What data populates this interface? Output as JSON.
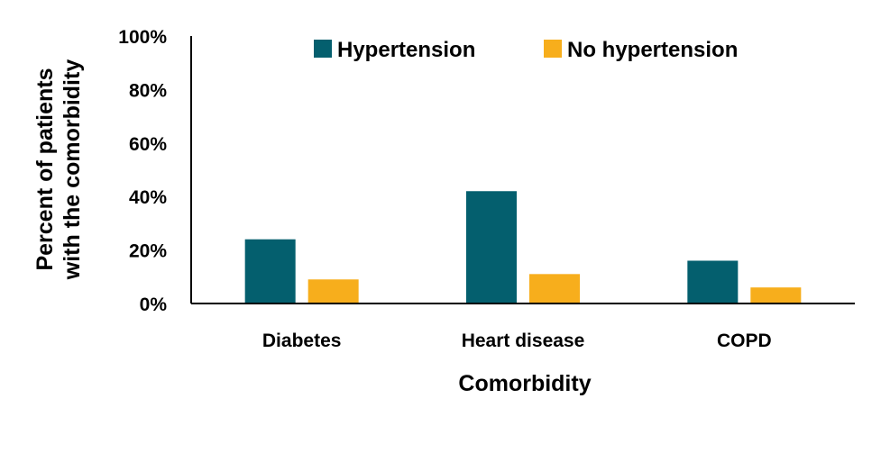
{
  "chart_data": {
    "type": "bar",
    "title": "",
    "xlabel": "Comorbidity",
    "ylabel": [
      "Percent of patients",
      "with the comorbidity"
    ],
    "categories": [
      "Diabetes",
      "Heart disease",
      "COPD"
    ],
    "series": [
      {
        "name": "Hypertension",
        "values": [
          24,
          42,
          16
        ],
        "color": "#045F6E"
      },
      {
        "name": "No hypertension",
        "values": [
          9,
          11,
          6
        ],
        "color": "#F7AE1C"
      }
    ],
    "ylim": [
      0,
      100
    ],
    "yticks": [
      "0%",
      "20%",
      "40%",
      "60%",
      "80%",
      "100%"
    ],
    "grid": false,
    "legend_position": "top"
  }
}
